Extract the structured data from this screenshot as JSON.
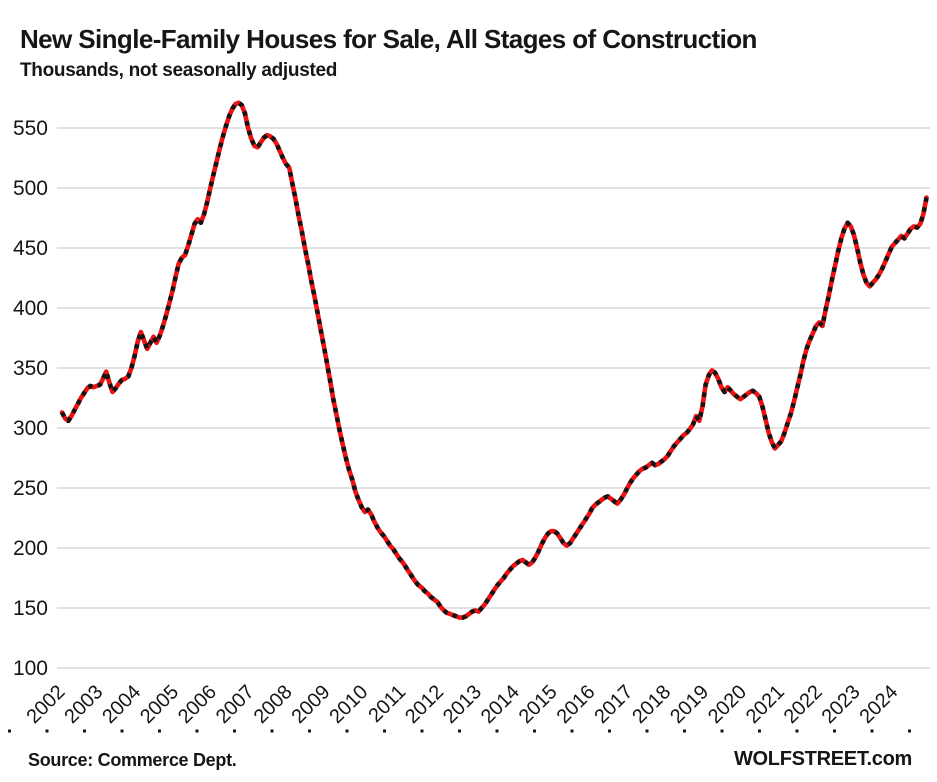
{
  "header": {
    "title": "New Single-Family Houses for Sale, All Stages of Construction",
    "subtitle": "Thousands, not seasonally adjusted"
  },
  "footer": {
    "source": "Source: Commerce Dept.",
    "brand": "WOLFSTREET.com"
  },
  "chart_data": {
    "type": "line",
    "title": "New Single-Family Houses for Sale, All Stages of Construction",
    "subtitle": "Thousands, not seasonally adjusted",
    "unit": "thousands of houses",
    "frequency": "monthly",
    "x_start": "2002-01",
    "x_end": "2024-11",
    "grid": "horizontal-only",
    "legend": "none",
    "ylim": [
      100,
      575
    ],
    "y_ticks": [
      100,
      150,
      200,
      250,
      300,
      350,
      400,
      450,
      500,
      550
    ],
    "year_labels": [
      "2002",
      "2003",
      "2004",
      "2005",
      "2006",
      "2007",
      "2008",
      "2009",
      "2010",
      "2011",
      "2012",
      "2013",
      "2014",
      "2015",
      "2016",
      "2017",
      "2018",
      "2019",
      "2020",
      "2021",
      "2022",
      "2023",
      "2024"
    ],
    "line_color": "#ee1111",
    "marker_color": "#141414",
    "gridline_color": "#d9d9d9",
    "series": [
      {
        "name": "New single-family houses for sale (thousands, NSA)",
        "values": [
          313,
          308,
          306,
          310,
          315,
          320,
          325,
          329,
          333,
          335,
          334,
          335,
          336,
          341,
          347,
          338,
          330,
          333,
          337,
          340,
          341,
          343,
          350,
          360,
          372,
          380,
          373,
          366,
          371,
          376,
          371,
          377,
          385,
          394,
          404,
          414,
          426,
          437,
          442,
          444,
          452,
          461,
          470,
          474,
          471,
          478,
          488,
          500,
          511,
          522,
          533,
          543,
          552,
          560,
          566,
          570,
          571,
          569,
          562,
          550,
          541,
          535,
          534,
          538,
          542,
          544,
          543,
          541,
          537,
          531,
          525,
          520,
          517,
          504,
          491,
          477,
          464,
          450,
          437,
          423,
          410,
          396,
          382,
          368,
          354,
          339,
          324,
          311,
          298,
          286,
          275,
          265,
          257,
          247,
          240,
          234,
          230,
          232,
          228,
          222,
          217,
          213,
          210,
          206,
          202,
          199,
          195,
          191,
          188,
          184,
          180,
          176,
          172,
          169,
          167,
          164,
          162,
          159,
          157,
          155,
          151,
          148,
          146,
          145,
          144,
          143,
          142,
          142,
          143,
          145,
          147,
          148,
          147,
          150,
          153,
          157,
          161,
          165,
          169,
          172,
          175,
          179,
          182,
          185,
          187,
          189,
          190,
          188,
          186,
          188,
          192,
          197,
          203,
          208,
          212,
          214,
          214,
          212,
          208,
          204,
          202,
          204,
          208,
          212,
          216,
          220,
          224,
          228,
          233,
          236,
          238,
          240,
          242,
          243,
          241,
          239,
          237,
          240,
          244,
          249,
          254,
          258,
          261,
          264,
          266,
          267,
          269,
          271,
          269,
          270,
          272,
          274,
          277,
          281,
          285,
          288,
          291,
          294,
          296,
          299,
          303,
          310,
          306,
          318,
          336,
          344,
          348,
          346,
          341,
          334,
          330,
          334,
          331,
          328,
          326,
          324,
          326,
          328,
          330,
          331,
          329,
          326,
          318,
          307,
          296,
          288,
          283,
          286,
          289,
          296,
          304,
          312,
          322,
          333,
          344,
          356,
          366,
          373,
          379,
          385,
          388,
          385,
          398,
          410,
          423,
          435,
          447,
          458,
          466,
          471,
          468,
          461,
          450,
          438,
          428,
          421,
          418,
          421,
          424,
          428,
          433,
          439,
          445,
          451,
          454,
          457,
          460,
          458,
          462,
          466,
          468,
          467,
          470,
          478,
          492
        ]
      }
    ]
  }
}
